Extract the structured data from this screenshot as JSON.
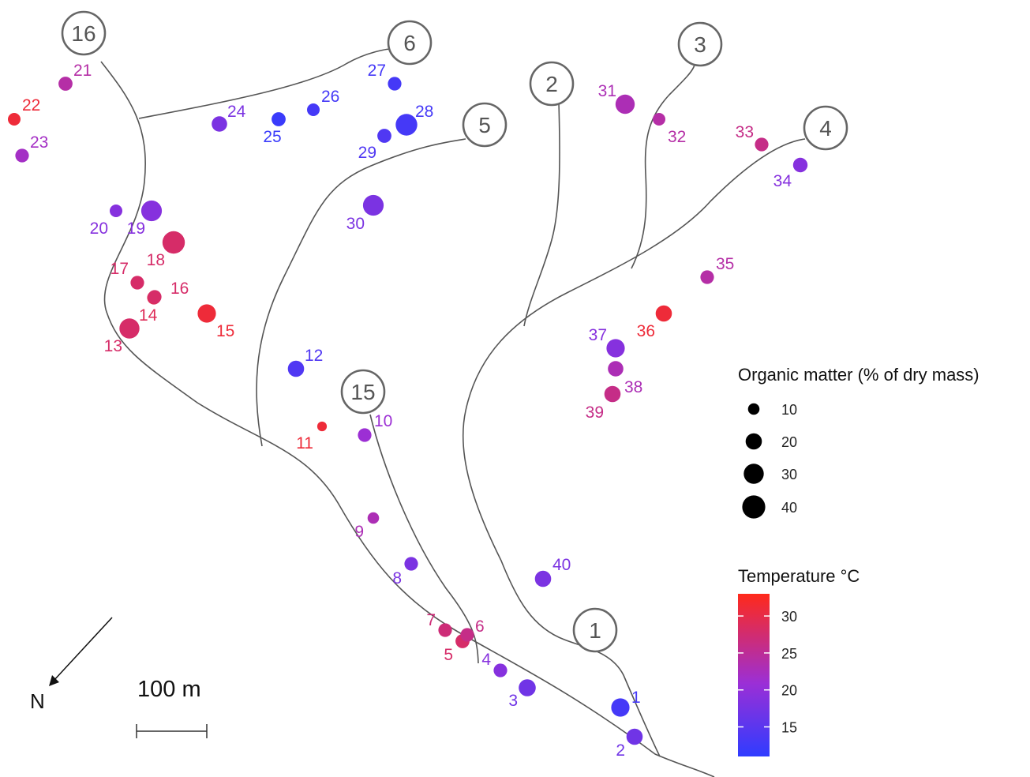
{
  "legend_size": {
    "title": "Organic matter (% of dry mass)",
    "entries": [
      {
        "label": "10",
        "value": 10
      },
      {
        "label": "20",
        "value": 20
      },
      {
        "label": "30",
        "value": 30
      },
      {
        "label": "40",
        "value": 40
      }
    ]
  },
  "legend_color": {
    "title": "Temperature °C",
    "ticks": [
      {
        "label": "30",
        "value": 30
      },
      {
        "label": "25",
        "value": 25
      },
      {
        "label": "20",
        "value": 20
      },
      {
        "label": "15",
        "value": 15
      }
    ],
    "range": [
      11,
      33
    ],
    "colors": {
      "low": "#2f3cff",
      "mid": "#9b2fd6",
      "high": "#ff2a1a"
    }
  },
  "north_label": "N",
  "scale_label": "100 m",
  "streams": [
    {
      "label": "16"
    },
    {
      "label": "6"
    },
    {
      "label": "2"
    },
    {
      "label": "3"
    },
    {
      "label": "5"
    },
    {
      "label": "4"
    },
    {
      "label": "15"
    },
    {
      "label": "1"
    }
  ],
  "sites": [
    {
      "id": "1",
      "temp": 13,
      "om": 25
    },
    {
      "id": "2",
      "temp": 17,
      "om": 20
    },
    {
      "id": "3",
      "temp": 17,
      "om": 22
    },
    {
      "id": "4",
      "temp": 19,
      "om": 14
    },
    {
      "id": "5",
      "temp": 28,
      "om": 15
    },
    {
      "id": "6",
      "temp": 26,
      "om": 14
    },
    {
      "id": "7",
      "temp": 27,
      "om": 14
    },
    {
      "id": "8",
      "temp": 18,
      "om": 14
    },
    {
      "id": "9",
      "temp": 23,
      "om": 10
    },
    {
      "id": "10",
      "temp": 21,
      "om": 14
    },
    {
      "id": "11",
      "temp": 31,
      "om": 7
    },
    {
      "id": "12",
      "temp": 14,
      "om": 20
    },
    {
      "id": "13",
      "temp": 28,
      "om": 30
    },
    {
      "id": "14",
      "temp": 29,
      "om": 14
    },
    {
      "id": "15",
      "temp": 31,
      "om": 25
    },
    {
      "id": "16",
      "temp": 28,
      "om": 14
    },
    {
      "id": "17",
      "temp": 28,
      "om": 14
    },
    {
      "id": "18",
      "temp": 28,
      "om": 38
    },
    {
      "id": "19",
      "temp": 19,
      "om": 32
    },
    {
      "id": "20",
      "temp": 19,
      "om": 12
    },
    {
      "id": "21",
      "temp": 24,
      "om": 15
    },
    {
      "id": "22",
      "temp": 31,
      "om": 12
    },
    {
      "id": "23",
      "temp": 22,
      "om": 14
    },
    {
      "id": "24",
      "temp": 18,
      "om": 18
    },
    {
      "id": "25",
      "temp": 12,
      "om": 15
    },
    {
      "id": "26",
      "temp": 13,
      "om": 12
    },
    {
      "id": "27",
      "temp": 13,
      "om": 14
    },
    {
      "id": "28",
      "temp": 13,
      "om": 35
    },
    {
      "id": "29",
      "temp": 14,
      "om": 15
    },
    {
      "id": "30",
      "temp": 18,
      "om": 32
    },
    {
      "id": "31",
      "temp": 23,
      "om": 28
    },
    {
      "id": "32",
      "temp": 24,
      "om": 12
    },
    {
      "id": "33",
      "temp": 26,
      "om": 14
    },
    {
      "id": "34",
      "temp": 19,
      "om": 16
    },
    {
      "id": "35",
      "temp": 24,
      "om": 14
    },
    {
      "id": "36",
      "temp": 31,
      "om": 20
    },
    {
      "id": "37",
      "temp": 19,
      "om": 25
    },
    {
      "id": "38",
      "temp": 23,
      "om": 18
    },
    {
      "id": "39",
      "temp": 26,
      "om": 20
    },
    {
      "id": "40",
      "temp": 18,
      "om": 20
    }
  ]
}
